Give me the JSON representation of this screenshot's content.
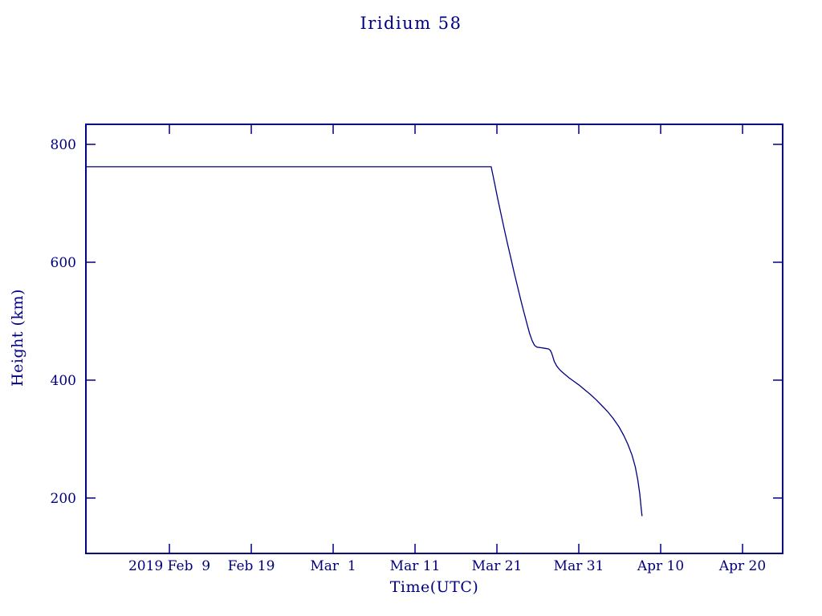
{
  "chart_data": {
    "type": "line",
    "title": "Iridium 58",
    "xlabel": "Time(UTC)",
    "ylabel": "Height (km)",
    "line_color": "#000080",
    "axis_color": "#000080",
    "grid": false,
    "legend": "none",
    "x_axis": {
      "unit": "days relative to 2019 Feb 9",
      "range": [
        -10.2,
        74.9
      ],
      "ticks": [
        {
          "day": 0,
          "label": "2019 Feb  9"
        },
        {
          "day": 10,
          "label": "Feb 19"
        },
        {
          "day": 20,
          "label": "Mar  1"
        },
        {
          "day": 30,
          "label": "Mar 11"
        },
        {
          "day": 40,
          "label": "Mar 21"
        },
        {
          "day": 50,
          "label": "Mar 31"
        },
        {
          "day": 60,
          "label": "Apr 10"
        },
        {
          "day": 70,
          "label": "Apr 20"
        }
      ]
    },
    "y_axis": {
      "range": [
        106,
        834
      ],
      "ticks": [
        200,
        400,
        600,
        800
      ]
    },
    "ylim": [
      106,
      834
    ],
    "series": [
      {
        "name": "height_km",
        "points": [
          [
            -10.2,
            762
          ],
          [
            0,
            762
          ],
          [
            10,
            762
          ],
          [
            20,
            762
          ],
          [
            30,
            762
          ],
          [
            35,
            762
          ],
          [
            38,
            762
          ],
          [
            39.3,
            762
          ],
          [
            39.7,
            735
          ],
          [
            40.1,
            708
          ],
          [
            40.5,
            682
          ],
          [
            40.9,
            656
          ],
          [
            41.3,
            631
          ],
          [
            41.7,
            607
          ],
          [
            42.1,
            583
          ],
          [
            42.5,
            560
          ],
          [
            42.9,
            537
          ],
          [
            43.3,
            515
          ],
          [
            43.7,
            494
          ],
          [
            44.0,
            479
          ],
          [
            44.3,
            467
          ],
          [
            44.6,
            459
          ],
          [
            44.9,
            456
          ],
          [
            45.4,
            455
          ],
          [
            45.9,
            454
          ],
          [
            46.3,
            453
          ],
          [
            46.5,
            451
          ],
          [
            46.65,
            447
          ],
          [
            46.8,
            441
          ],
          [
            47.0,
            432
          ],
          [
            47.3,
            424
          ],
          [
            47.7,
            417
          ],
          [
            48.2,
            411
          ],
          [
            48.8,
            404
          ],
          [
            49.4,
            398
          ],
          [
            50.0,
            392
          ],
          [
            50.7,
            384
          ],
          [
            51.4,
            376
          ],
          [
            52.1,
            367
          ],
          [
            52.8,
            357
          ],
          [
            53.5,
            347
          ],
          [
            54.2,
            335
          ],
          [
            54.9,
            321
          ],
          [
            55.5,
            306
          ],
          [
            56.0,
            291
          ],
          [
            56.5,
            273
          ],
          [
            56.9,
            253
          ],
          [
            57.2,
            231
          ],
          [
            57.45,
            207
          ],
          [
            57.6,
            186
          ],
          [
            57.7,
            172
          ],
          [
            57.72,
            170
          ]
        ]
      }
    ]
  }
}
